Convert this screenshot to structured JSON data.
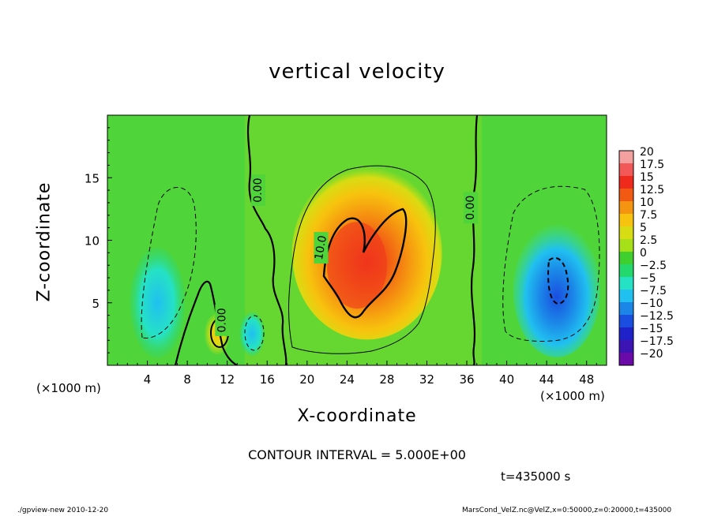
{
  "chart_data": {
    "type": "heatmap",
    "title": "vertical velocity",
    "xlabel": "X-coordinate",
    "ylabel": "Z-coordinate",
    "x_unit_label": "(×1000 m)",
    "xlim": [
      0,
      50
    ],
    "ylim": [
      0,
      20
    ],
    "x_ticks": [
      4,
      8,
      12,
      16,
      20,
      24,
      28,
      32,
      36,
      40,
      44,
      48
    ],
    "y_ticks": [
      5,
      10,
      15
    ],
    "colorbar": {
      "levels": [
        "20",
        "17.5",
        "15",
        "12.5",
        "10",
        "7.5",
        "5",
        "2.5",
        "0",
        "-2.5",
        "-5",
        "-7.5",
        "-10",
        "-12.5",
        "-15",
        "-17.5",
        "-20"
      ],
      "colors": [
        "#f4a0a0",
        "#f25858",
        "#ef2a1c",
        "#f25a14",
        "#f59410",
        "#f7c30e",
        "#d8dc12",
        "#a6e018",
        "#3fcf2e",
        "#23d86c",
        "#25e2c4",
        "#20c0f0",
        "#1b86e8",
        "#1a4ee0",
        "#1e22c8",
        "#3c14b4",
        "#6a0aa8"
      ]
    },
    "contour_labels": [
      "0.00",
      "0.00",
      "0.00",
      "10.0"
    ],
    "contour_interval": "CONTOUR INTERVAL = 5.000E+00",
    "time": "t=435000 s",
    "footer_left": "./gpview-new  2010-12-20",
    "footer_right": "MarsCond_VelZ.nc@VelZ,x=0:50000,z=0:20000,t=435000",
    "features": [
      {
        "name": "updraft-core",
        "x": 25,
        "z": 8,
        "value": 15
      },
      {
        "name": "updraft-envelope",
        "x": 26,
        "z": 9,
        "value": 7.5
      },
      {
        "name": "downdraft-right",
        "x": 45,
        "z": 6,
        "value": -10
      },
      {
        "name": "downdraft-left",
        "x": 5,
        "z": 5,
        "value": -5
      },
      {
        "name": "small-updraft",
        "x": 11,
        "z": 2.5,
        "value": 5
      },
      {
        "name": "small-downdraft",
        "x": 14.5,
        "z": 2.5,
        "value": -5
      }
    ]
  }
}
